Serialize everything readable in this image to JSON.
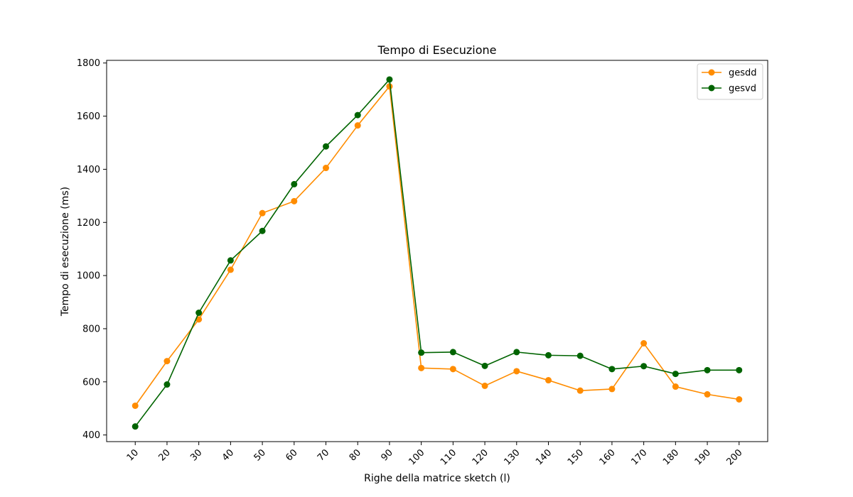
{
  "chart_data": {
    "type": "line",
    "title": "Tempo di Esecuzione",
    "xlabel": "Righe della matrice sketch (l)",
    "ylabel": "Tempo di esecuzione (ms)",
    "x": [
      10,
      20,
      30,
      40,
      50,
      60,
      70,
      80,
      90,
      100,
      110,
      120,
      130,
      140,
      150,
      160,
      170,
      180,
      190,
      200
    ],
    "x_tick_labels": [
      "10",
      "20",
      "30",
      "40",
      "50",
      "60",
      "70",
      "80",
      "90",
      "100",
      "110",
      "120",
      "130",
      "140",
      "150",
      "160",
      "170",
      "180",
      "190",
      "200"
    ],
    "y_ticks": [
      400,
      600,
      800,
      1000,
      1200,
      1400,
      1600,
      1800
    ],
    "y_tick_labels": [
      "400",
      "600",
      "800",
      "1000",
      "1200",
      "1400",
      "1600",
      "1800"
    ],
    "ylim": [
      375,
      1810
    ],
    "xlim": [
      1,
      209
    ],
    "grid": false,
    "legend_position": "top-right",
    "series": [
      {
        "name": "gesdd",
        "color": "#ff8c00",
        "marker": "circle",
        "values": [
          510,
          678,
          835,
          1022,
          1235,
          1280,
          1405,
          1565,
          1712,
          652,
          648,
          585,
          640,
          606,
          567,
          573,
          745,
          582,
          553,
          534
        ]
      },
      {
        "name": "gesvd",
        "color": "#006400",
        "marker": "circle",
        "values": [
          432,
          590,
          860,
          1057,
          1168,
          1344,
          1486,
          1604,
          1738,
          710,
          712,
          660,
          712,
          700,
          698,
          648,
          659,
          630,
          644,
          644
        ]
      }
    ]
  }
}
